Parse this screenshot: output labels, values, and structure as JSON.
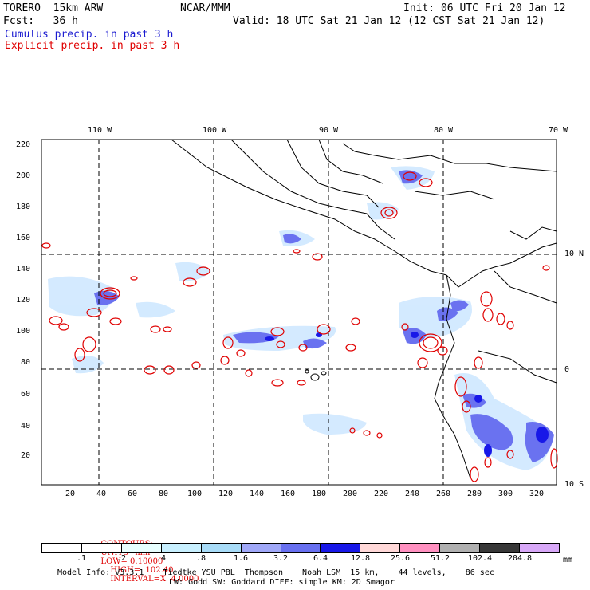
{
  "header": {
    "line1_left": "TORERO  15km ARW",
    "line1_center": "NCAR/MMM",
    "line1_right": "Init: 06 UTC Fri 20 Jan 12",
    "line2_left": "Fcst:   36 h",
    "line2_right": "Valid: 18 UTC Sat 21 Jan 12 (12 CST Sat 21 Jan 12)",
    "legend_cumulus": "Cumulus precip. in past 3 h",
    "legend_explicit": "Explicit precip. in past 3 h"
  },
  "colors": {
    "cumulus": "#1a1ad0",
    "explicit": "#e00000",
    "coast": "#000000",
    "grid": "#000000"
  },
  "map": {
    "lon_labels": [
      "110 W",
      "100 W",
      "90 W",
      "80 W",
      "70 W"
    ],
    "lat_labels": [
      "10 N",
      "0",
      "10 S"
    ],
    "x_ticks": [
      "20",
      "40",
      "60",
      "80",
      "100",
      "120",
      "140",
      "160",
      "180",
      "200",
      "220",
      "240",
      "260",
      "280",
      "300",
      "320"
    ],
    "y_ticks": [
      "20",
      "40",
      "60",
      "80",
      "100",
      "120",
      "140",
      "160",
      "180",
      "200",
      "220"
    ]
  },
  "contour_info": {
    "contours": "CONTOURS:",
    "units": "UNITS=mm",
    "low": "LOW= 0.10000",
    "high": "HIGH=  102.40",
    "interval": "INTERVAL=X  4.0000"
  },
  "colorbar": {
    "labels": [
      ".1",
      ".2",
      ".4",
      ".8",
      "1.6",
      "3.2",
      "6.4",
      "12.8",
      "25.6",
      "51.2",
      "102.4",
      "204.8"
    ],
    "colors": [
      "#ffffff",
      "#ffffff",
      "#e8ffff",
      "#c8f0ff",
      "#a8dcf8",
      "#a0a8f8",
      "#6870f0",
      "#1818e8",
      "#ffd8d8",
      "#ff90c0",
      "#b0b0b0",
      "#383838",
      "#d8a8f8"
    ],
    "unit": "mm"
  },
  "footer": {
    "line1": "Model Info: V3.3.1    Tiedtke YSU PBL  Thompson    Noah LSM  15 km,    44 levels,    86 sec",
    "line2": "LW: Godd SW: Goddard DIFF: simple KM: 2D Smagor"
  }
}
